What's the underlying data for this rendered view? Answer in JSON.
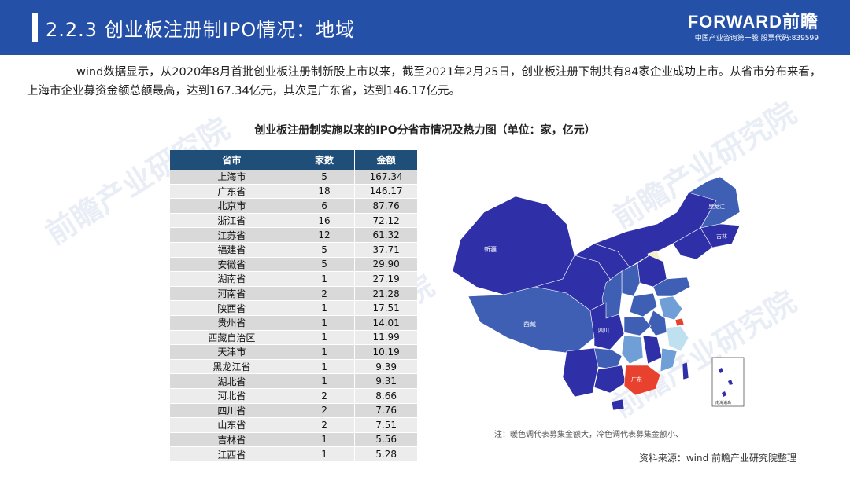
{
  "header": {
    "title": "2.2.3 创业板注册制IPO情况：地域",
    "brand_logo": "FORWARD前瞻",
    "brand_tagline": "中国产业咨询第一股 股票代码:839599"
  },
  "intro": "wind数据显示，从2020年8月首批创业板注册制新股上市以来，截至2021年2月25日，创业板注册下制共有84家企业成功上市。从省市分布来看，上海市企业募资金额总额最高，达到167.34亿元，其次是广东省，达到146.17亿元。",
  "table": {
    "caption": "创业板注册制实施以来的IPO分省市情况及热力图（单位：家，亿元）",
    "headers": [
      "省市",
      "家数",
      "金额"
    ],
    "rows": [
      [
        "上海市",
        "5",
        "167.34"
      ],
      [
        "广东省",
        "18",
        "146.17"
      ],
      [
        "北京市",
        "6",
        "87.76"
      ],
      [
        "浙江省",
        "16",
        "72.12"
      ],
      [
        "江苏省",
        "12",
        "61.32"
      ],
      [
        "福建省",
        "5",
        "37.71"
      ],
      [
        "安徽省",
        "5",
        "29.90"
      ],
      [
        "湖南省",
        "1",
        "27.19"
      ],
      [
        "河南省",
        "2",
        "21.28"
      ],
      [
        "陕西省",
        "1",
        "17.51"
      ],
      [
        "贵州省",
        "1",
        "14.01"
      ],
      [
        "西藏自治区",
        "1",
        "11.99"
      ],
      [
        "天津市",
        "1",
        "10.19"
      ],
      [
        "黑龙江省",
        "1",
        "9.39"
      ],
      [
        "湖北省",
        "1",
        "9.31"
      ],
      [
        "河北省",
        "2",
        "8.66"
      ],
      [
        "四川省",
        "2",
        "7.76"
      ],
      [
        "山东省",
        "2",
        "7.51"
      ],
      [
        "吉林省",
        "1",
        "5.56"
      ],
      [
        "江西省",
        "1",
        "5.28"
      ]
    ]
  },
  "map": {
    "labels": {
      "xinjiang": "新疆",
      "xizang": "西藏",
      "guangdong": "广东",
      "sichuan": "四川",
      "heilongjiang": "黑龙江",
      "jilin": "吉林",
      "south_sea_inset": "南海诸岛"
    },
    "colors": {
      "hot": "#E8412E",
      "dark": "#2F2FA8",
      "mid": "#3F5FB5",
      "light": "#6F9FD6",
      "pale": "#BFE0EE",
      "cream": "#F5EFC8"
    }
  },
  "note": "注：暖色调代表募集金额大，冷色调代表募集金额小、",
  "source": "资料来源：wind 前瞻产业研究院整理",
  "watermark": "前瞻产业研究院"
}
